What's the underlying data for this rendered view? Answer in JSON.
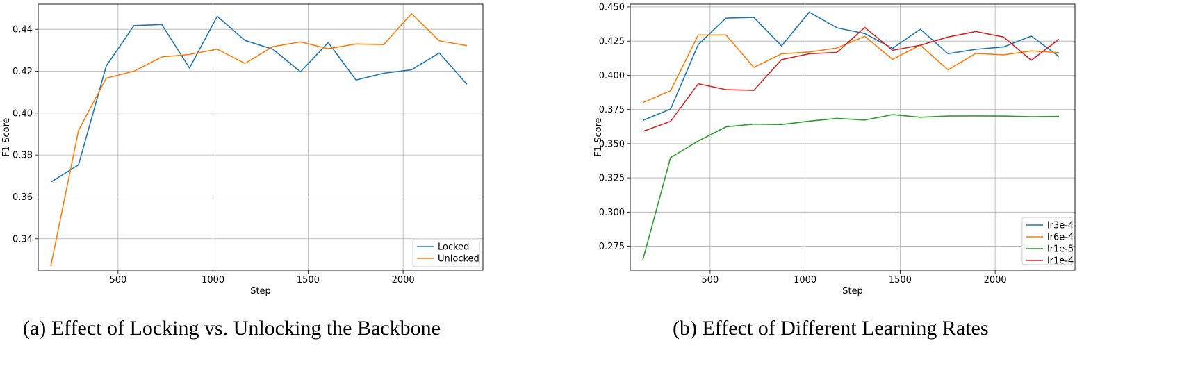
{
  "chart_data": [
    {
      "type": "line",
      "xlabel": "Step",
      "ylabel": "F1 Score",
      "xlim": [
        80,
        2420
      ],
      "ylim": [
        0.325,
        0.452
      ],
      "xticks": [
        500,
        1000,
        1500,
        2000
      ],
      "yticks": [
        0.34,
        0.36,
        0.38,
        0.4,
        0.42,
        0.44
      ],
      "ytick_labels": [
        "0.34",
        "0.36",
        "0.38",
        "0.40",
        "0.42",
        "0.44"
      ],
      "xtick_labels": [
        "500",
        "1000",
        "1500",
        "2000"
      ],
      "grid": true,
      "legend_position": "lower-right",
      "caption": "(a) Effect of Locking vs. Unlocking the Backbone",
      "x": [
        146,
        292,
        438,
        584,
        730,
        876,
        1022,
        1168,
        1314,
        1460,
        1606,
        1752,
        1898,
        2044,
        2190,
        2336
      ],
      "series": [
        {
          "name": "Locked",
          "color": "#1f77b4",
          "values": [
            0.367,
            0.3753,
            0.4225,
            0.4418,
            0.4423,
            0.4215,
            0.4462,
            0.4347,
            0.4305,
            0.4197,
            0.4337,
            0.4158,
            0.419,
            0.4207,
            0.4287,
            0.4137
          ]
        },
        {
          "name": "Unlocked",
          "color": "#ff7f0e",
          "values": [
            0.327,
            0.3917,
            0.4167,
            0.42,
            0.4268,
            0.428,
            0.4305,
            0.4237,
            0.4317,
            0.434,
            0.4307,
            0.433,
            0.4327,
            0.4475,
            0.4345,
            0.4322
          ]
        }
      ]
    },
    {
      "type": "line",
      "xlabel": "Step",
      "ylabel": "F1 Score",
      "xlim": [
        80,
        2420
      ],
      "ylim": [
        0.2575,
        0.452
      ],
      "xticks": [
        500,
        1000,
        1500,
        2000
      ],
      "yticks": [
        0.275,
        0.3,
        0.325,
        0.35,
        0.375,
        0.4,
        0.425,
        0.45
      ],
      "ytick_labels": [
        "0.275",
        "0.300",
        "0.325",
        "0.350",
        "0.375",
        "0.400",
        "0.425",
        "0.450"
      ],
      "xtick_labels": [
        "500",
        "1000",
        "1500",
        "2000"
      ],
      "grid": true,
      "legend_position": "lower-right",
      "caption": "(b) Effect of Different Learning Rates",
      "x": [
        146,
        292,
        438,
        584,
        730,
        876,
        1022,
        1168,
        1314,
        1460,
        1606,
        1752,
        1898,
        2044,
        2190,
        2336
      ],
      "series": [
        {
          "name": "lr3e-4",
          "color": "#1f77b4",
          "values": [
            0.367,
            0.3753,
            0.4225,
            0.4418,
            0.4423,
            0.4215,
            0.4462,
            0.4347,
            0.4305,
            0.4197,
            0.4337,
            0.4158,
            0.419,
            0.4207,
            0.4287,
            0.4137
          ]
        },
        {
          "name": "lr6e-4",
          "color": "#ff7f0e",
          "values": [
            0.38,
            0.3887,
            0.4295,
            0.4295,
            0.4058,
            0.4157,
            0.417,
            0.42,
            0.4285,
            0.4117,
            0.422,
            0.404,
            0.416,
            0.415,
            0.4178,
            0.4165
          ]
        },
        {
          "name": "lr1e-5",
          "color": "#2ca02c",
          "values": [
            0.265,
            0.3398,
            0.352,
            0.3623,
            0.3643,
            0.364,
            0.3665,
            0.3685,
            0.3673,
            0.3712,
            0.3693,
            0.3702,
            0.3703,
            0.3702,
            0.3697,
            0.37
          ]
        },
        {
          "name": "lr1e-4",
          "color": "#d62728",
          "values": [
            0.359,
            0.3663,
            0.3938,
            0.3895,
            0.389,
            0.4115,
            0.4157,
            0.4168,
            0.435,
            0.4183,
            0.422,
            0.428,
            0.432,
            0.428,
            0.411,
            0.4263
          ]
        }
      ]
    }
  ]
}
